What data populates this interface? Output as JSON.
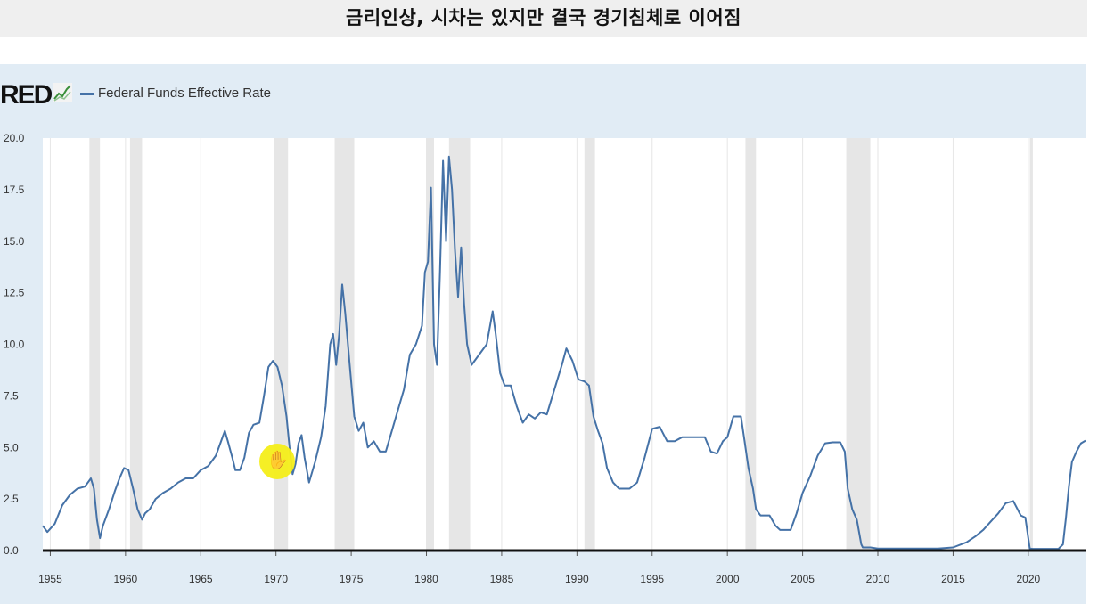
{
  "banner": {
    "title": "금리인상, 시차는 있지만 결국 경기침체로 이어짐"
  },
  "brand": {
    "logo_text": "RED",
    "icon": "chart-trend-icon"
  },
  "colors": {
    "series": "#4572a7",
    "recession": "#e6e6e6",
    "plot_bg": "#ffffff",
    "panel_bg": "#e1ecf5"
  },
  "chart_data": {
    "type": "line",
    "title": "",
    "xlabel": "",
    "ylabel": "",
    "xlim": [
      1954.5,
      2023.8
    ],
    "ylim": [
      0,
      20
    ],
    "grid": "vertical",
    "legend": "top-left",
    "y_ticks": [
      "0.0",
      "2.5",
      "5.0",
      "7.5",
      "10.0",
      "12.5",
      "15.0",
      "17.5",
      "20.0"
    ],
    "x_ticks": [
      "1955",
      "1960",
      "1965",
      "1970",
      "1975",
      "1980",
      "1985",
      "1990",
      "1995",
      "2000",
      "2005",
      "2010",
      "2015",
      "2020"
    ],
    "recessions": [
      [
        1957.6,
        1958.3
      ],
      [
        1960.3,
        1961.1
      ],
      [
        1969.9,
        1970.8
      ],
      [
        1973.9,
        1975.2
      ],
      [
        1980.0,
        1980.5
      ],
      [
        1981.5,
        1982.9
      ],
      [
        1990.5,
        1991.2
      ],
      [
        2001.2,
        2001.9
      ],
      [
        2007.9,
        2009.5
      ],
      [
        2020.1,
        2020.3
      ]
    ],
    "series": [
      {
        "name": "Federal Funds Effective Rate",
        "x": [
          1954.5,
          1954.8,
          1955.3,
          1955.8,
          1956.3,
          1956.8,
          1957.3,
          1957.7,
          1957.9,
          1958.1,
          1958.3,
          1958.5,
          1958.9,
          1959.3,
          1959.6,
          1959.9,
          1960.2,
          1960.5,
          1960.8,
          1961.1,
          1961.3,
          1961.6,
          1962.0,
          1962.5,
          1963.0,
          1963.5,
          1964.0,
          1964.5,
          1965.0,
          1965.5,
          1966.0,
          1966.4,
          1966.6,
          1966.8,
          1967.1,
          1967.3,
          1967.6,
          1967.9,
          1968.2,
          1968.5,
          1968.9,
          1969.2,
          1969.5,
          1969.8,
          1970.1,
          1970.4,
          1970.7,
          1970.9,
          1971.1,
          1971.3,
          1971.5,
          1971.7,
          1971.9,
          1972.2,
          1972.6,
          1973.0,
          1973.3,
          1973.6,
          1973.8,
          1974.0,
          1974.2,
          1974.4,
          1974.6,
          1974.9,
          1975.2,
          1975.5,
          1975.8,
          1976.1,
          1976.5,
          1976.9,
          1977.3,
          1977.7,
          1978.1,
          1978.5,
          1978.9,
          1979.3,
          1979.7,
          1979.9,
          1980.1,
          1980.3,
          1980.5,
          1980.7,
          1980.9,
          1981.1,
          1981.3,
          1981.5,
          1981.7,
          1981.9,
          1982.1,
          1982.3,
          1982.5,
          1982.7,
          1983.0,
          1983.5,
          1984.0,
          1984.4,
          1984.6,
          1984.9,
          1985.2,
          1985.6,
          1986.0,
          1986.4,
          1986.8,
          1987.2,
          1987.6,
          1988.0,
          1988.5,
          1989.0,
          1989.3,
          1989.7,
          1990.1,
          1990.5,
          1990.8,
          1991.1,
          1991.4,
          1991.7,
          1992.0,
          1992.4,
          1992.8,
          1993.5,
          1994.0,
          1994.5,
          1995.0,
          1995.5,
          1996.0,
          1996.5,
          1997.0,
          1997.5,
          1998.0,
          1998.5,
          1998.9,
          1999.3,
          1999.7,
          2000.0,
          2000.4,
          2000.9,
          2001.1,
          2001.4,
          2001.7,
          2001.9,
          2002.2,
          2002.8,
          2003.2,
          2003.5,
          2004.2,
          2004.6,
          2005.0,
          2005.5,
          2006.0,
          2006.5,
          2007.0,
          2007.5,
          2007.8,
          2008.0,
          2008.3,
          2008.6,
          2008.9,
          2009.0,
          2009.5,
          2010.0,
          2011.0,
          2012.0,
          2013.0,
          2014.0,
          2015.0,
          2015.9,
          2016.5,
          2017.0,
          2017.5,
          2018.0,
          2018.5,
          2019.0,
          2019.5,
          2019.8,
          2020.1,
          2020.3,
          2021.0,
          2021.5,
          2022.0,
          2022.3,
          2022.5,
          2022.7,
          2022.9,
          2023.2,
          2023.5,
          2023.8
        ],
        "y": [
          1.2,
          0.9,
          1.3,
          2.2,
          2.7,
          3.0,
          3.1,
          3.5,
          3.0,
          1.5,
          0.6,
          1.2,
          2.0,
          2.9,
          3.5,
          4.0,
          3.9,
          3.0,
          2.0,
          1.5,
          1.8,
          2.0,
          2.5,
          2.8,
          3.0,
          3.3,
          3.5,
          3.5,
          3.9,
          4.1,
          4.6,
          5.4,
          5.8,
          5.3,
          4.5,
          3.9,
          3.9,
          4.5,
          5.7,
          6.1,
          6.2,
          7.5,
          8.9,
          9.2,
          8.9,
          8.0,
          6.5,
          5.0,
          3.7,
          4.2,
          5.2,
          5.6,
          4.5,
          3.3,
          4.3,
          5.5,
          7.0,
          10.0,
          10.5,
          9.0,
          10.5,
          12.9,
          11.5,
          9.0,
          6.5,
          5.8,
          6.2,
          5.0,
          5.3,
          4.8,
          4.8,
          5.8,
          6.8,
          7.8,
          9.5,
          10.0,
          10.9,
          13.5,
          14.0,
          17.6,
          10.0,
          9.0,
          13.5,
          18.9,
          15.0,
          19.1,
          17.5,
          14.5,
          12.3,
          14.7,
          12.0,
          10.0,
          9.0,
          9.5,
          10.0,
          11.6,
          10.5,
          8.6,
          8.0,
          8.0,
          7.0,
          6.2,
          6.6,
          6.4,
          6.7,
          6.6,
          7.8,
          9.0,
          9.8,
          9.2,
          8.3,
          8.2,
          8.0,
          6.5,
          5.8,
          5.2,
          4.0,
          3.3,
          3.0,
          3.0,
          3.3,
          4.5,
          5.9,
          6.0,
          5.3,
          5.3,
          5.5,
          5.5,
          5.5,
          5.5,
          4.8,
          4.7,
          5.3,
          5.5,
          6.5,
          6.5,
          5.5,
          4.0,
          3.0,
          2.0,
          1.7,
          1.7,
          1.2,
          1.0,
          1.0,
          1.8,
          2.8,
          3.6,
          4.6,
          5.2,
          5.25,
          5.25,
          4.8,
          3.0,
          2.0,
          1.5,
          0.3,
          0.15,
          0.15,
          0.1,
          0.1,
          0.1,
          0.1,
          0.1,
          0.15,
          0.4,
          0.7,
          1.0,
          1.4,
          1.8,
          2.3,
          2.4,
          1.7,
          1.6,
          0.1,
          0.08,
          0.08,
          0.08,
          0.08,
          0.3,
          1.6,
          3.1,
          4.3,
          4.8,
          5.2,
          5.33
        ]
      }
    ]
  }
}
